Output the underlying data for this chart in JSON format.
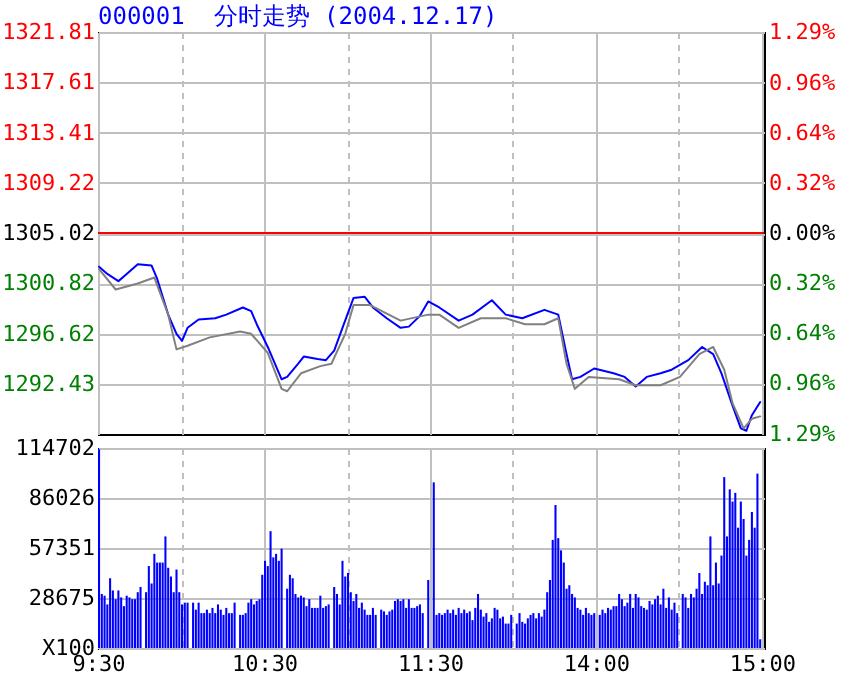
{
  "chart_data": [
    {
      "type": "line",
      "title": "000001  分时走势 (2004.12.17)",
      "categories": [
        null,
        null,
        null,
        null,
        null,
        null,
        null,
        null,
        null,
        null,
        null,
        null,
        null,
        null,
        null,
        null,
        null,
        null,
        null,
        null,
        null,
        null,
        null,
        null,
        null,
        null,
        null,
        null,
        null,
        null,
        null,
        null,
        null,
        null,
        null,
        null,
        null,
        null,
        null,
        null,
        null,
        null,
        null,
        null,
        null,
        null,
        null,
        null,
        null,
        null,
        null,
        null,
        null,
        null,
        null,
        null,
        null,
        null,
        null,
        null,
        null,
        null,
        null,
        null,
        null,
        null,
        null,
        null,
        null,
        null,
        null,
        null,
        null,
        null,
        null,
        null,
        null,
        null,
        null,
        null,
        null,
        null,
        null,
        null,
        null,
        null,
        null,
        null,
        null,
        null,
        null,
        null,
        null,
        null,
        null,
        null,
        null,
        null,
        null,
        null,
        null,
        null,
        null,
        null,
        null,
        null,
        null,
        null,
        null,
        null,
        null,
        null,
        null,
        null,
        null,
        null,
        null,
        null,
        null,
        null,
        null,
        null,
        null,
        null,
        null,
        null,
        null,
        null,
        null,
        null,
        null,
        null,
        null,
        null,
        null,
        null,
        null,
        null,
        null,
        null,
        null,
        null,
        null,
        null,
        null,
        null,
        null,
        null,
        null,
        null,
        null,
        null,
        null,
        null,
        null,
        null,
        null,
        null,
        null,
        null,
        null,
        null,
        null,
        null,
        null,
        null,
        null,
        null,
        null,
        null,
        null,
        null,
        null,
        null,
        null,
        null,
        null,
        null,
        null,
        null,
        null,
        null,
        null,
        null,
        null,
        null,
        null,
        null,
        null,
        null,
        null,
        null,
        null,
        null,
        null,
        null,
        null,
        null,
        null,
        null,
        null,
        null,
        null,
        null,
        null,
        null,
        null,
        null,
        null,
        null,
        null,
        null,
        null,
        null,
        null,
        null,
        null,
        null,
        null,
        null,
        null,
        null,
        null,
        null,
        null,
        null,
        null,
        null,
        null,
        null,
        null,
        null,
        null,
        null,
        null,
        null,
        null,
        null,
        null,
        null,
        null
      ],
      "ylim": [
        1288.23,
        1321.81
      ],
      "yticks": [
        1292.43,
        1296.62,
        1300.82,
        1305.02,
        1309.22,
        1313.41,
        1317.61,
        1321.81
      ],
      "y2lim": [
        -1.29,
        1.29
      ],
      "y2ticks": [
        {
          "value": -1.29,
          "label": "1.29%"
        },
        {
          "value": -0.96,
          "label": "0.96%"
        },
        {
          "value": -0.64,
          "label": "0.64%"
        },
        {
          "value": -0.32,
          "label": "0.32%"
        },
        {
          "value": 0,
          "label": "0.00%"
        },
        {
          "value": 0.32,
          "label": "0.32%"
        },
        {
          "value": 0.64,
          "label": "0.64%"
        },
        {
          "value": 0.96,
          "label": "0.96%"
        },
        {
          "value": 1.29,
          "label": "1.29%"
        }
      ],
      "grid": true,
      "tick_labels": "y",
      "ref_lines": [
        {
          "axis": "y",
          "value": 1305.02,
          "color": "#ff0000"
        }
      ],
      "series": [
        {
          "color": "#0000ff",
          "values": [
            1302.2,
            null,
            null,
            1301.6,
            null,
            null,
            null,
            1301.0,
            null,
            null,
            1301.6,
            null,
            null,
            null,
            1302.4,
            null,
            null,
            null,
            null,
            1302.3,
            null,
            1301.2,
            null,
            null,
            null,
            1298.2,
            null,
            null,
            1296.6,
            null,
            1296.0,
            null,
            1297.1,
            null,
            null,
            null,
            1297.8,
            null,
            null,
            null,
            null,
            null,
            1297.9,
            null,
            null,
            null,
            1298.2,
            null,
            null,
            null,
            null,
            null,
            1298.8,
            null,
            null,
            1298.5,
            null,
            1297.4,
            null,
            null,
            null,
            1295.5,
            null,
            null,
            null,
            null,
            1292.8,
            null,
            1293.0,
            null,
            null,
            null,
            1294.1,
            null,
            1294.7,
            null,
            null,
            null,
            null,
            1294.5,
            null,
            null,
            1294.4,
            null,
            null,
            1295.2,
            null,
            null,
            1297.1,
            null,
            null,
            null,
            1299.6,
            null,
            null,
            null,
            1299.7,
            null,
            null,
            1298.8,
            null,
            null,
            null,
            null,
            1297.9,
            null,
            null,
            null,
            null,
            1297.1,
            null,
            null,
            1297.2,
            null,
            null,
            null,
            1298.1,
            null,
            null,
            1299.3,
            null,
            null,
            null,
            1298.8,
            null,
            null,
            null,
            null,
            null,
            null,
            1297.7,
            null,
            null,
            null,
            null,
            1298.2,
            null,
            null,
            null,
            null,
            null,
            null,
            1299.4,
            null,
            null,
            null,
            null,
            1298.2,
            null,
            null,
            null,
            null,
            null,
            1297.9,
            null,
            null,
            null,
            null,
            null,
            null,
            null,
            1298.6,
            null,
            null,
            null,
            null,
            1298.2,
            null,
            null,
            1294.9,
            null,
            1292.8,
            null,
            null,
            1293.0,
            null,
            null,
            null,
            null,
            1293.7,
            null,
            null,
            null,
            null,
            null,
            null,
            1293.3,
            null,
            null,
            null,
            1293.0,
            null,
            null,
            null,
            1292.2,
            null,
            null,
            null,
            1293.0,
            null,
            null,
            null,
            null,
            1293.3,
            null,
            null,
            null,
            1293.6,
            null,
            null,
            null,
            null,
            null,
            1294.4,
            null,
            null,
            null,
            null,
            1295.5,
            null,
            null,
            null,
            1294.9,
            null,
            null,
            1293.3,
            null,
            null,
            null,
            1290.6,
            null,
            null,
            1288.7,
            null,
            1288.5,
            null,
            1289.8,
            null,
            null,
            1290.9,
            null
          ]
        },
        {
          "color": "#808080",
          "values": [
            1302.0,
            null,
            null,
            null,
            null,
            null,
            1300.3,
            null,
            null,
            null,
            null,
            null,
            null,
            null,
            1300.8,
            null,
            null,
            null,
            null,
            null,
            1301.3,
            null,
            null,
            null,
            null,
            1298.2,
            null,
            null,
            1295.3,
            null,
            null,
            null,
            1295.6,
            null,
            null,
            null,
            null,
            null,
            null,
            null,
            1296.3,
            null,
            null,
            null,
            null,
            null,
            null,
            null,
            null,
            null,
            null,
            1296.8,
            null,
            null,
            null,
            1296.6,
            null,
            null,
            null,
            null,
            null,
            1295.0,
            null,
            null,
            null,
            null,
            1292.0,
            null,
            1291.8,
            null,
            null,
            null,
            null,
            1293.3,
            null,
            null,
            null,
            null,
            null,
            null,
            1293.9,
            null,
            null,
            null,
            1294.1,
            null,
            null,
            null,
            null,
            1296.6,
            null,
            null,
            1299.0,
            null,
            null,
            null,
            null,
            null,
            1299.0,
            null,
            null,
            null,
            null,
            null,
            null,
            null,
            null,
            null,
            null,
            1297.7,
            null,
            null,
            null,
            null,
            null,
            null,
            null,
            null,
            null,
            1298.2,
            null,
            null,
            null,
            1298.2,
            null,
            null,
            null,
            null,
            null,
            null,
            1297.1,
            null,
            null,
            null,
            null,
            null,
            null,
            null,
            1297.9,
            null,
            null,
            null,
            null,
            null,
            null,
            null,
            null,
            1297.9,
            null,
            null,
            null,
            null,
            null,
            null,
            1297.4,
            null,
            null,
            null,
            null,
            null,
            null,
            1297.4,
            null,
            null,
            null,
            null,
            1297.9,
            null,
            null,
            1294.1,
            null,
            null,
            1292.0,
            null,
            null,
            null,
            null,
            1293.0,
            null,
            null,
            null,
            null,
            null,
            null,
            null,
            null,
            null,
            null,
            1292.8,
            null,
            null,
            null,
            null,
            null,
            1292.3,
            null,
            null,
            null,
            null,
            null,
            null,
            null,
            null,
            1292.3,
            null,
            null,
            null,
            null,
            null,
            null,
            1293.0,
            null,
            null,
            null,
            null,
            null,
            null,
            1294.9,
            null,
            null,
            null,
            null,
            1295.5,
            null,
            null,
            null,
            1293.6,
            null,
            null,
            1290.8,
            null,
            null,
            null,
            1288.7,
            null,
            null,
            1289.5,
            null,
            null,
            1289.7,
            null
          ]
        }
      ]
    },
    {
      "type": "bar",
      "color": "#0000ff",
      "grid": true,
      "categories": [
        "9:30",
        null,
        null,
        null,
        null,
        null,
        null,
        null,
        null,
        null,
        null,
        null,
        null,
        null,
        null,
        null,
        null,
        null,
        null,
        null,
        null,
        null,
        null,
        null,
        null,
        null,
        null,
        null,
        null,
        null,
        null,
        null,
        null,
        null,
        null,
        null,
        null,
        null,
        null,
        null,
        null,
        null,
        null,
        null,
        null,
        null,
        null,
        null,
        null,
        null,
        null,
        null,
        null,
        null,
        null,
        null,
        null,
        null,
        null,
        null,
        "10:30",
        null,
        null,
        null,
        null,
        null,
        null,
        null,
        null,
        null,
        null,
        null,
        null,
        null,
        null,
        null,
        null,
        null,
        null,
        null,
        null,
        null,
        null,
        null,
        null,
        null,
        null,
        null,
        null,
        null,
        null,
        null,
        null,
        null,
        null,
        null,
        null,
        null,
        null,
        null,
        null,
        null,
        null,
        null,
        null,
        null,
        null,
        null,
        null,
        null,
        null,
        null,
        null,
        null,
        null,
        null,
        null,
        null,
        null,
        null,
        "11:30",
        null,
        null,
        null,
        null,
        null,
        null,
        null,
        null,
        null,
        null,
        null,
        null,
        null,
        null,
        null,
        null,
        null,
        null,
        null,
        null,
        null,
        null,
        null,
        null,
        null,
        null,
        null,
        null,
        null,
        null,
        null,
        null,
        null,
        null,
        null,
        null,
        null,
        null,
        null,
        null,
        null,
        null,
        null,
        null,
        null,
        null,
        null,
        null,
        null,
        null,
        null,
        null,
        null,
        null,
        null,
        null,
        null,
        null,
        null,
        "14:00",
        null,
        null,
        null,
        null,
        null,
        null,
        null,
        null,
        null,
        null,
        null,
        null,
        null,
        null,
        null,
        null,
        null,
        null,
        null,
        null,
        null,
        null,
        null,
        null,
        null,
        null,
        null,
        null,
        null,
        null,
        null,
        null,
        null,
        null,
        null,
        null,
        null,
        null,
        null,
        null,
        null,
        null,
        null,
        null,
        null,
        null,
        null,
        null,
        null,
        null,
        null,
        null,
        null,
        null,
        null,
        null,
        null,
        null,
        null,
        "15:00"
      ],
      "ylim": [
        0,
        114702
      ],
      "yticks": [
        {
          "value": 0,
          "label": "X100"
        },
        28675,
        57351,
        86026,
        114702
      ],
      "values": [
        114000,
        31000,
        30000,
        25000,
        40000,
        33000,
        28000,
        33000,
        29000,
        24000,
        30000,
        29000,
        28000,
        28000,
        32000,
        35000,
        null,
        32000,
        47000,
        37000,
        54000,
        49000,
        49000,
        49000,
        64000,
        46000,
        41000,
        32000,
        45000,
        32000,
        25000,
        26000,
        26000,
        null,
        26000,
        22000,
        26000,
        20000,
        20000,
        22000,
        20000,
        23000,
        20000,
        25000,
        22000,
        19000,
        23000,
        20000,
        20000,
        26000,
        null,
        19000,
        19000,
        20000,
        26000,
        28000,
        25000,
        27000,
        28000,
        42000,
        50000,
        47000,
        67000,
        52000,
        54000,
        50000,
        57000,
        null,
        34000,
        42000,
        40000,
        31000,
        29000,
        30000,
        29000,
        24000,
        28000,
        23000,
        23000,
        23000,
        30000,
        23000,
        24000,
        25000,
        null,
        35000,
        31000,
        25000,
        50000,
        41000,
        43000,
        32000,
        27000,
        31000,
        23000,
        26000,
        22000,
        19000,
        19000,
        23000,
        19000,
        null,
        22000,
        21000,
        19000,
        21000,
        22000,
        27000,
        28000,
        27000,
        28000,
        23000,
        28000,
        23000,
        23000,
        24000,
        25000,
        20000,
        null,
        39000,
        null,
        95000,
        19000,
        20000,
        19000,
        20000,
        22000,
        20000,
        22000,
        19000,
        23000,
        20000,
        22000,
        20000,
        21000,
        16000,
        23000,
        31000,
        22000,
        18000,
        20000,
        15000,
        17000,
        23000,
        22000,
        17000,
        18000,
        14000,
        14000,
        19000,
        null,
        14000,
        20000,
        15000,
        14000,
        17000,
        19000,
        20000,
        17000,
        20000,
        18000,
        22000,
        32000,
        39000,
        62000,
        82000,
        63000,
        56000,
        49000,
        34000,
        36000,
        31000,
        29000,
        23000,
        22000,
        19000,
        23000,
        20000,
        19000,
        20000,
        null,
        19000,
        22000,
        20000,
        23000,
        22000,
        24000,
        24000,
        31000,
        28000,
        24000,
        26000,
        31000,
        23000,
        31000,
        29000,
        24000,
        23000,
        22000,
        27000,
        25000,
        28000,
        30000,
        25000,
        34000,
        23000,
        29000,
        22000,
        26000,
        20000,
        null,
        31000,
        29000,
        23000,
        31000,
        29000,
        34000,
        43000,
        31000,
        38000,
        36000,
        64000,
        36000,
        49000,
        37000,
        53000,
        98000,
        64000,
        91000,
        84000,
        89000,
        69000,
        84000,
        74000,
        53000,
        62000,
        78000,
        69000,
        100000,
        5000,
        null
      ]
    }
  ]
}
